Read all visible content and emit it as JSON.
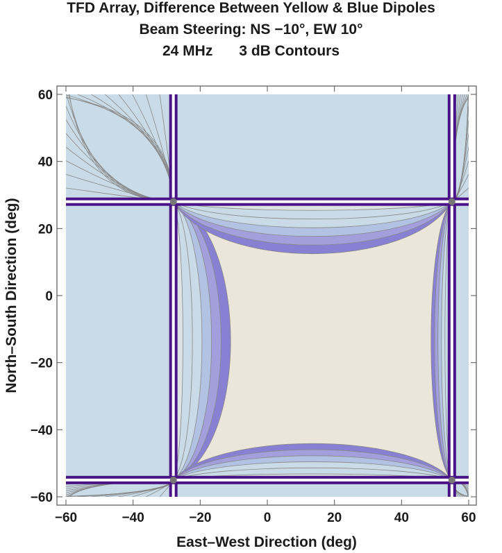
{
  "chart_data": {
    "type": "heatmap",
    "title_lines": [
      "TFD Array, Difference Between Yellow & Blue Dipoles",
      "Beam Steering: NS −10°, EW 10°",
      "24 MHz",
      "3 dB Contours"
    ],
    "xlabel": "East–West Direction (deg)",
    "ylabel": "North–South Direction (deg)",
    "xlim": [
      -60,
      60
    ],
    "ylim": [
      -60,
      60
    ],
    "xticks": [
      -60,
      -40,
      -20,
      0,
      20,
      40,
      60
    ],
    "yticks": [
      -60,
      -40,
      -20,
      0,
      20,
      40,
      60
    ],
    "xtick_labels": [
      "−60",
      "−40",
      "−20",
      "0",
      "20",
      "40",
      "60"
    ],
    "ytick_labels": [
      "−60",
      "−40",
      "−20",
      "0",
      "20",
      "40",
      "60"
    ],
    "contour_step_db": 3,
    "null_lines": {
      "ew_deg": [
        -28,
        55
      ],
      "ns_deg": [
        28,
        -55
      ]
    },
    "colors": {
      "level_high": "#ebe6da",
      "level_2": "#dde3e3",
      "level_3": "#c8dbe6",
      "level_4": "#b2c2e2",
      "level_5": "#a29fdc",
      "level_6": "#8880d2",
      "null": "#4a1487",
      "contour_line": "#888888"
    }
  }
}
